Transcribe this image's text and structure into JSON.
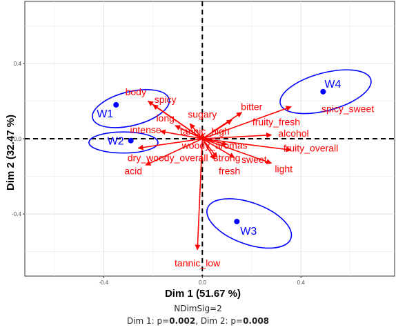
{
  "chart_data": {
    "type": "scatter",
    "xlabel": "Dim 1 (51.67 %)",
    "ylabel": "Dim 2 (32.47 %)",
    "xlim": [
      -0.72,
      0.78
    ],
    "ylim": [
      -0.73,
      0.73
    ],
    "x_ticks": [
      -0.4,
      0.0,
      0.4
    ],
    "y_ticks": [
      -0.4,
      0.0,
      0.4
    ],
    "tick_labels_x": [
      "-0.4",
      "0.0",
      "0.4"
    ],
    "tick_labels_y": [
      "-0.4",
      "0.0",
      "0.4"
    ],
    "grid": true,
    "reference_lines": {
      "x": 0,
      "y": 0,
      "style": "dashed"
    },
    "colors": {
      "products": "#0000ff",
      "attributes": "#ff0000",
      "ellipses": "#0000ff",
      "grid": "#ebebeb"
    },
    "products": [
      {
        "name": "W1",
        "x": -0.35,
        "y": 0.18,
        "label_pos": "below-left"
      },
      {
        "name": "W2",
        "x": -0.29,
        "y": -0.01,
        "label_pos": "left"
      },
      {
        "name": "W3",
        "x": 0.14,
        "y": -0.44,
        "label_pos": "below-right"
      },
      {
        "name": "W4",
        "x": 0.49,
        "y": 0.25,
        "label_pos": "above-right"
      }
    ],
    "ellipses": [
      {
        "product": "W1",
        "cx": -0.29,
        "cy": 0.16,
        "rx": 0.16,
        "ry": 0.09,
        "angle": 14
      },
      {
        "product": "W2",
        "cx": -0.32,
        "cy": -0.02,
        "rx": 0.14,
        "ry": 0.056,
        "angle": 0
      },
      {
        "product": "W3",
        "cx": 0.19,
        "cy": -0.45,
        "rx": 0.18,
        "ry": 0.11,
        "angle": -20
      },
      {
        "product": "W4",
        "cx": 0.5,
        "cy": 0.25,
        "rx": 0.19,
        "ry": 0.1,
        "angle": 15
      }
    ],
    "attributes": [
      {
        "name": "body",
        "x": -0.2,
        "y": 0.18,
        "label": [
          -0.27,
          0.25
        ]
      },
      {
        "name": "spicy",
        "x": -0.22,
        "y": 0.2,
        "label": [
          -0.15,
          0.21
        ]
      },
      {
        "name": "long",
        "x": -0.11,
        "y": 0.07,
        "label": [
          -0.15,
          0.11
        ]
      },
      {
        "name": "sugary",
        "x": -0.05,
        "y": 0.08,
        "label": [
          0.0,
          0.13
        ]
      },
      {
        "name": "intense",
        "x": -0.17,
        "y": 0.04,
        "label": [
          -0.23,
          0.048
        ]
      },
      {
        "name": "tannic_high",
        "x": 0.0,
        "y": 0.03,
        "label": [
          0.01,
          0.04
        ]
      },
      {
        "name": "bitter",
        "x": 0.16,
        "y": 0.14,
        "label": [
          0.2,
          0.17
        ]
      },
      {
        "name": "fruity_fresh",
        "x": 0.12,
        "y": 0.1,
        "label": [
          0.3,
          0.09
        ]
      },
      {
        "name": "spicy_sweet",
        "x": 0.36,
        "y": 0.17,
        "label": [
          0.59,
          0.16
        ]
      },
      {
        "name": "alcohol",
        "x": 0.28,
        "y": 0.02,
        "label": [
          0.37,
          0.03
        ]
      },
      {
        "name": "woody_aromas",
        "x": 0.1,
        "y": -0.03,
        "label": [
          0.05,
          -0.035
        ]
      },
      {
        "name": "fruity_overall",
        "x": 0.36,
        "y": -0.06,
        "label": [
          0.44,
          -0.05
        ]
      },
      {
        "name": "dry_woody_overall",
        "x": -0.26,
        "y": -0.05,
        "label": [
          -0.14,
          -0.1
        ]
      },
      {
        "name": "acid",
        "x": -0.23,
        "y": -0.14,
        "label": [
          -0.28,
          -0.17
        ]
      },
      {
        "name": "strong",
        "x": 0.06,
        "y": -0.1,
        "label": [
          0.1,
          -0.1
        ]
      },
      {
        "name": "sweet",
        "x": 0.13,
        "y": -0.1,
        "label": [
          0.21,
          -0.11
        ]
      },
      {
        "name": "fresh",
        "x": 0.05,
        "y": -0.11,
        "label": [
          0.11,
          -0.17
        ]
      },
      {
        "name": "light",
        "x": 0.28,
        "y": -0.13,
        "label": [
          0.33,
          -0.16
        ]
      },
      {
        "name": "tannic_low",
        "x": -0.02,
        "y": -0.59,
        "label": [
          -0.02,
          -0.66
        ]
      }
    ]
  },
  "captions": {
    "line1": "NDimSig=2",
    "line2_a": "Dim 1: p=",
    "line2_b": "0.002",
    "line2_c": ", Dim 2: p=",
    "line2_d": "0.008"
  }
}
